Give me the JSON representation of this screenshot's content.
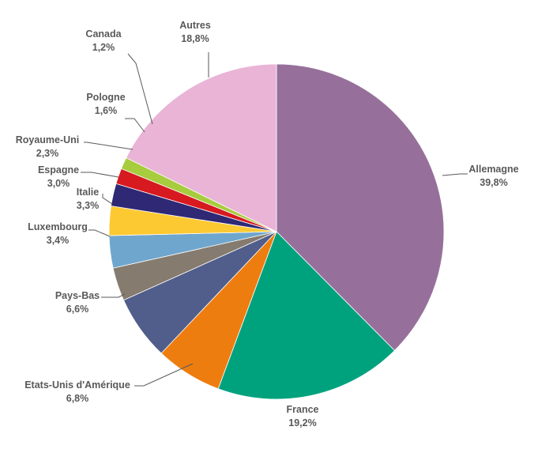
{
  "chart_data": {
    "type": "pie",
    "title": "",
    "slices": [
      {
        "label": "Allemagne",
        "value_text": "39,8%",
        "value": 39.8,
        "color": "#96709a"
      },
      {
        "label": "France",
        "value_text": "19,2%",
        "value": 19.2,
        "color": "#00a27e"
      },
      {
        "label": "Etats-Unis d'Amérique",
        "value_text": "6,8%",
        "value": 6.8,
        "color": "#ee7d0f"
      },
      {
        "label": "Pays-Bas",
        "value_text": "6,6%",
        "value": 6.6,
        "color": "#515e8b"
      },
      {
        "label": "Luxembourg",
        "value_text": "3,4%",
        "value": 3.4,
        "color": "#857b6e"
      },
      {
        "label": "Italie",
        "value_text": "3,3%",
        "value": 3.3,
        "color": "#6fa6cd"
      },
      {
        "label": "Espagne",
        "value_text": "3,0%",
        "value": 3.0,
        "color": "#fdc933"
      },
      {
        "label": "Royaume-Uni",
        "value_text": "2,3%",
        "value": 2.3,
        "color": "#2e2875"
      },
      {
        "label": "Pologne",
        "value_text": "1,6%",
        "value": 1.6,
        "color": "#d71920"
      },
      {
        "label": "Canada",
        "value_text": "1,2%",
        "value": 1.2,
        "color": "#a7cc3e"
      },
      {
        "label": "Autres",
        "value_text": "18,8%",
        "value": 18.8,
        "color": "#e9b4d6"
      }
    ],
    "legend": "none",
    "data_labels": "outside with leader lines"
  }
}
